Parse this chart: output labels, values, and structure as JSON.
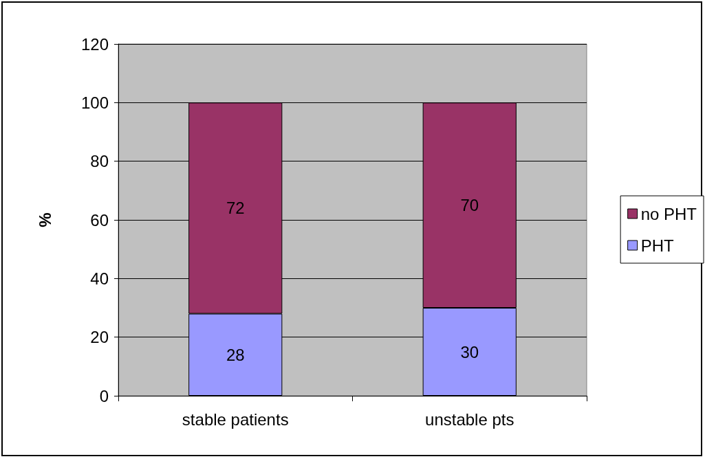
{
  "chart_data": {
    "type": "bar",
    "ylabel": "%",
    "categories": [
      "stable patients",
      "unstable pts"
    ],
    "series": [
      {
        "name": "PHT",
        "color": "#9999ff",
        "values": [
          28,
          30
        ]
      },
      {
        "name": "no PHT",
        "color": "#993366",
        "values": [
          72,
          70
        ]
      }
    ],
    "stacked": true,
    "data_labels": true,
    "ylim": [
      0,
      120
    ],
    "yticks": [
      0,
      20,
      40,
      60,
      80,
      100,
      120
    ],
    "grid": "y",
    "legend": "right"
  }
}
